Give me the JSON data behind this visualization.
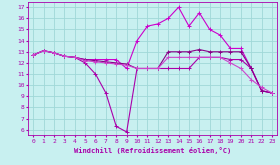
{
  "xlabel": "Windchill (Refroidissement éolien,°C)",
  "bg_color": "#c8f0f0",
  "grid_color": "#a0d8d8",
  "line_color": "#aa00aa",
  "xlim": [
    -0.5,
    23.5
  ],
  "ylim": [
    5.5,
    17.5
  ],
  "yticks": [
    6,
    7,
    8,
    9,
    10,
    11,
    12,
    13,
    14,
    15,
    16,
    17
  ],
  "xticks": [
    0,
    1,
    2,
    3,
    4,
    5,
    6,
    7,
    8,
    9,
    10,
    11,
    12,
    13,
    14,
    15,
    16,
    17,
    18,
    19,
    20,
    21,
    22,
    23
  ],
  "series": [
    {
      "x": [
        0,
        1,
        2,
        3,
        4,
        5,
        6,
        7,
        8,
        9,
        10,
        11,
        12,
        13,
        14,
        15,
        16,
        17,
        18,
        19,
        20,
        21,
        22,
        23
      ],
      "y": [
        12.7,
        13.1,
        12.9,
        12.6,
        12.5,
        12.0,
        11.0,
        9.3,
        6.3,
        5.8,
        11.5,
        11.5,
        11.5,
        11.5,
        11.5,
        11.5,
        12.5,
        12.5,
        12.5,
        12.3,
        12.3,
        11.5,
        9.5,
        9.3
      ],
      "color": "#aa00aa"
    },
    {
      "x": [
        0,
        1,
        2,
        3,
        4,
        5,
        6,
        7,
        8,
        9,
        10,
        11,
        12,
        13,
        14,
        15,
        16,
        17,
        18,
        19,
        20,
        21,
        22,
        23
      ],
      "y": [
        12.7,
        13.1,
        12.9,
        12.6,
        12.5,
        12.3,
        12.3,
        12.3,
        12.3,
        11.5,
        14.0,
        15.3,
        15.5,
        16.0,
        17.0,
        15.3,
        16.5,
        15.0,
        14.5,
        13.3,
        13.3,
        11.5,
        9.5,
        9.3
      ],
      "color": "#cc00cc"
    },
    {
      "x": [
        0,
        1,
        2,
        3,
        4,
        5,
        6,
        7,
        8,
        9,
        10,
        11,
        12,
        13,
        14,
        15,
        16,
        17,
        18,
        19,
        20,
        21,
        22,
        23
      ],
      "y": [
        12.7,
        13.1,
        12.9,
        12.6,
        12.5,
        12.3,
        12.2,
        12.1,
        12.0,
        11.9,
        11.5,
        11.5,
        11.5,
        13.0,
        13.0,
        13.0,
        13.2,
        13.0,
        13.0,
        13.0,
        13.0,
        11.5,
        9.5,
        9.3
      ],
      "color": "#880088"
    },
    {
      "x": [
        0,
        1,
        2,
        3,
        4,
        5,
        6,
        7,
        8,
        9,
        10,
        11,
        12,
        13,
        14,
        15,
        16,
        17,
        18,
        19,
        20,
        21,
        22,
        23
      ],
      "y": [
        12.7,
        13.1,
        12.9,
        12.6,
        12.5,
        12.2,
        12.1,
        12.0,
        11.9,
        11.8,
        11.5,
        11.5,
        11.5,
        12.5,
        12.5,
        12.5,
        12.5,
        12.5,
        12.5,
        12.0,
        11.5,
        10.5,
        9.8,
        9.3
      ],
      "color": "#cc44cc"
    }
  ]
}
